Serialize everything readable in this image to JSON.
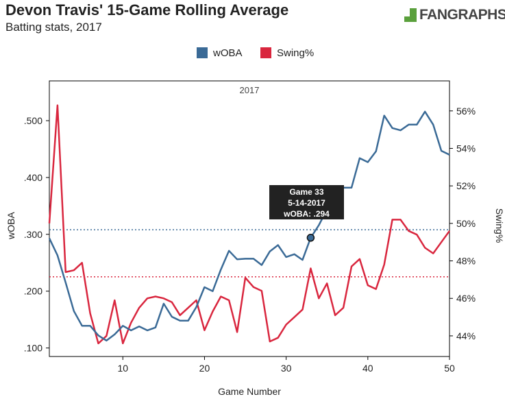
{
  "header": {
    "title": "Devon Travis' 15-Game Rolling Average",
    "subtitle": "Batting stats, 2017",
    "logo_text": "FANGRAPHS"
  },
  "tooltip": {
    "line1": "Game 33",
    "line2": "5-14-2017",
    "line3": "wOBA: .294"
  },
  "chart_data": {
    "type": "line",
    "facet_label": "2017",
    "xlabel": "Game Number",
    "ylabel": "wOBA",
    "y2label": "Swing%",
    "xlim": [
      1,
      50
    ],
    "ylim": [
      0.085,
      0.57
    ],
    "y2lim": [
      42.9,
      57.6
    ],
    "x_ticks": [
      10,
      20,
      30,
      40,
      50
    ],
    "y_ticks": [
      0.1,
      0.2,
      0.3,
      0.4,
      0.5
    ],
    "y_tick_labels": [
      ".100",
      ".200",
      ".300",
      ".400",
      ".500"
    ],
    "y2_ticks": [
      44,
      46,
      48,
      50,
      52,
      54,
      56
    ],
    "y2_tick_labels": [
      "44%",
      "46%",
      "48%",
      "50%",
      "52%",
      "54%",
      "56%"
    ],
    "legend_position": "top-center",
    "x": [
      1,
      2,
      3,
      4,
      5,
      6,
      7,
      8,
      9,
      10,
      11,
      12,
      13,
      14,
      15,
      16,
      17,
      18,
      19,
      20,
      21,
      22,
      23,
      24,
      25,
      26,
      27,
      28,
      29,
      30,
      31,
      32,
      33,
      34,
      35,
      36,
      37,
      38,
      39,
      40,
      41,
      42,
      43,
      44,
      45,
      46,
      47,
      48,
      49,
      50
    ],
    "series": [
      {
        "name": "wOBA",
        "axis": "left",
        "color": "#3a6a96",
        "values": [
          0.293,
          0.263,
          0.215,
          0.165,
          0.139,
          0.139,
          0.122,
          0.113,
          0.124,
          0.139,
          0.131,
          0.138,
          0.131,
          0.136,
          0.178,
          0.155,
          0.148,
          0.148,
          0.172,
          0.207,
          0.2,
          0.238,
          0.271,
          0.256,
          0.257,
          0.257,
          0.246,
          0.27,
          0.281,
          0.26,
          0.265,
          0.255,
          0.294,
          0.316,
          0.344,
          0.375,
          0.382,
          0.382,
          0.434,
          0.427,
          0.446,
          0.509,
          0.487,
          0.483,
          0.493,
          0.493,
          0.516,
          0.493,
          0.447,
          0.44
        ]
      },
      {
        "name": "Swing%",
        "axis": "right",
        "color": "#d9263e",
        "values": [
          50.0,
          56.3,
          47.4,
          47.5,
          47.9,
          45.2,
          43.6,
          44.0,
          45.9,
          43.6,
          44.7,
          45.5,
          46.0,
          46.1,
          46.0,
          45.8,
          45.1,
          45.5,
          45.9,
          44.3,
          45.3,
          46.1,
          45.9,
          44.2,
          47.1,
          46.6,
          46.4,
          43.7,
          43.9,
          44.6,
          45.0,
          45.4,
          47.6,
          46.0,
          46.8,
          45.1,
          45.5,
          47.7,
          48.1,
          46.7,
          46.5,
          47.8,
          50.2,
          50.2,
          49.6,
          49.4,
          48.7,
          48.4,
          49.0,
          49.6
        ]
      }
    ],
    "reference_lines": [
      {
        "series": "wOBA",
        "axis": "left",
        "value": 0.308,
        "color": "#3a6a96"
      },
      {
        "series": "Swing%",
        "axis": "right",
        "value": 47.15,
        "color": "#d9263e"
      }
    ],
    "highlight_point": {
      "series": "wOBA",
      "x": 33,
      "y": 0.294
    }
  }
}
